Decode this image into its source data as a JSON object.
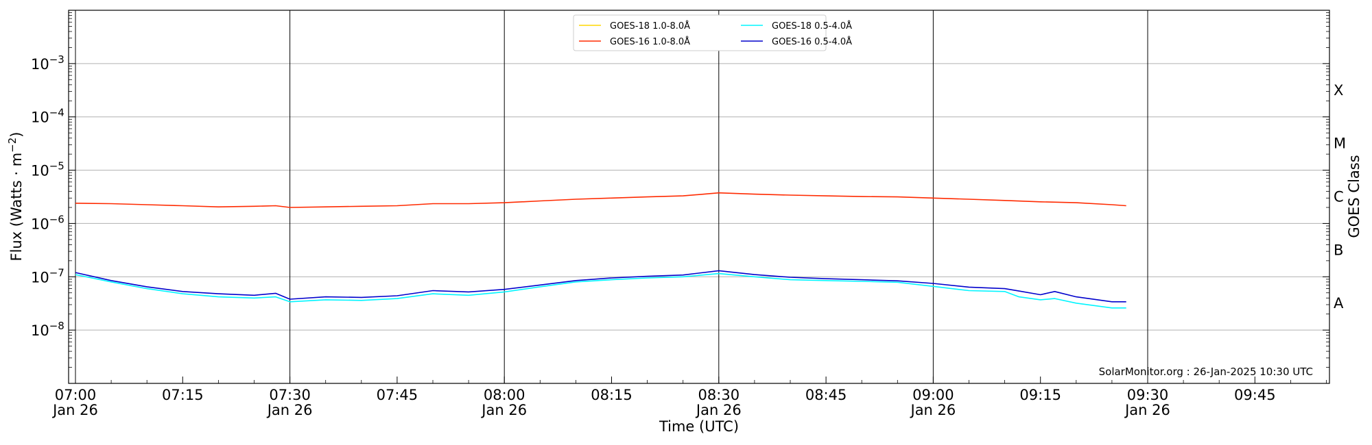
{
  "chart_data": {
    "type": "line",
    "title": "",
    "xlabel": "Time (UTC)",
    "ylabel": "Flux (Watts · m⁻²)",
    "ylabel_right": "GOES Class",
    "yscale": "log",
    "ylim": [
      1e-09,
      0.01
    ],
    "xlim": [
      "06:59",
      "09:55"
    ],
    "grid": "horizontal at decades",
    "credit": "SolarMonitor.org : 26-Jan-2025 10:30 UTC",
    "x_ticks": [
      {
        "time": "07:00",
        "label": "07:00",
        "sub": "Jan 26"
      },
      {
        "time": "07:15",
        "label": "07:15",
        "sub": ""
      },
      {
        "time": "07:30",
        "label": "07:30",
        "sub": "Jan 26"
      },
      {
        "time": "07:45",
        "label": "07:45",
        "sub": ""
      },
      {
        "time": "08:00",
        "label": "08:00",
        "sub": "Jan 26"
      },
      {
        "time": "08:15",
        "label": "08:15",
        "sub": ""
      },
      {
        "time": "08:30",
        "label": "08:30",
        "sub": "Jan 26"
      },
      {
        "time": "08:45",
        "label": "08:45",
        "sub": ""
      },
      {
        "time": "09:00",
        "label": "09:00",
        "sub": "Jan 26"
      },
      {
        "time": "09:15",
        "label": "09:15",
        "sub": ""
      },
      {
        "time": "09:30",
        "label": "09:30",
        "sub": "Jan 26"
      },
      {
        "time": "09:45",
        "label": "09:45",
        "sub": ""
      }
    ],
    "vertical_lines": [
      "07:00",
      "07:30",
      "08:00",
      "08:30",
      "09:00",
      "09:30"
    ],
    "y_ticks": [
      {
        "exp": -8,
        "label": "10",
        "sup": "−8"
      },
      {
        "exp": -7,
        "label": "10",
        "sup": "−7"
      },
      {
        "exp": -6,
        "label": "10",
        "sup": "−6"
      },
      {
        "exp": -5,
        "label": "10",
        "sup": "−5"
      },
      {
        "exp": -4,
        "label": "10",
        "sup": "−4"
      },
      {
        "exp": -3,
        "label": "10",
        "sup": "−3"
      }
    ],
    "goes_classes": [
      {
        "label": "A",
        "exp": -7.5
      },
      {
        "label": "B",
        "exp": -6.5
      },
      {
        "label": "C",
        "exp": -5.5
      },
      {
        "label": "M",
        "exp": -4.5
      },
      {
        "label": "X",
        "exp": -3.5
      }
    ],
    "legend": {
      "placement": "top-center",
      "entries": [
        "GOES-18 1.0-8.0Å",
        "GOES-16 1.0-8.0Å",
        "GOES-18 0.5-4.0Å",
        "GOES-16 0.5-4.0Å"
      ]
    },
    "series": [
      {
        "name": "GOES-18 1.0-8.0Å",
        "color": "#ffd700",
        "x": [],
        "y": []
      },
      {
        "name": "GOES-16 1.0-8.0Å",
        "color": "#ff2a00",
        "x": [
          "07:00",
          "07:05",
          "07:10",
          "07:15",
          "07:20",
          "07:25",
          "07:28",
          "07:30",
          "07:35",
          "07:40",
          "07:45",
          "07:50",
          "07:55",
          "08:00",
          "08:05",
          "08:10",
          "08:15",
          "08:20",
          "08:25",
          "08:30",
          "08:35",
          "08:40",
          "08:45",
          "08:50",
          "08:55",
          "09:00",
          "09:05",
          "09:10",
          "09:15",
          "09:20",
          "09:25",
          "09:27"
        ],
        "y": [
          2.4e-06,
          2.35e-06,
          2.25e-06,
          2.15e-06,
          2.05e-06,
          2.1e-06,
          2.15e-06,
          2e-06,
          2.05e-06,
          2.1e-06,
          2.15e-06,
          2.35e-06,
          2.35e-06,
          2.45e-06,
          2.65e-06,
          2.85e-06,
          3e-06,
          3.15e-06,
          3.3e-06,
          3.75e-06,
          3.55e-06,
          3.4e-06,
          3.3e-06,
          3.2e-06,
          3.15e-06,
          3e-06,
          2.85e-06,
          2.7e-06,
          2.55e-06,
          2.45e-06,
          2.25e-06,
          2.15e-06
        ]
      },
      {
        "name": "GOES-18 0.5-4.0Å",
        "color": "#00f5ff",
        "x": [
          "07:00",
          "07:05",
          "07:10",
          "07:15",
          "07:20",
          "07:25",
          "07:28",
          "07:30",
          "07:35",
          "07:40",
          "07:45",
          "07:50",
          "07:55",
          "08:00",
          "08:05",
          "08:10",
          "08:15",
          "08:20",
          "08:25",
          "08:30",
          "08:35",
          "08:40",
          "08:45",
          "08:50",
          "08:55",
          "09:00",
          "09:05",
          "09:10",
          "09:12",
          "09:15",
          "09:17",
          "09:20",
          "09:25",
          "09:27"
        ],
        "y": [
          1.1e-07,
          8e-08,
          6e-08,
          4.8e-08,
          4.2e-08,
          4e-08,
          4.2e-08,
          3.4e-08,
          3.7e-08,
          3.6e-08,
          3.9e-08,
          4.8e-08,
          4.5e-08,
          5.2e-08,
          6.5e-08,
          8e-08,
          8.8e-08,
          9.5e-08,
          1e-07,
          1.15e-07,
          1e-07,
          8.8e-08,
          8.5e-08,
          8.2e-08,
          7.9e-08,
          6.6e-08,
          5.5e-08,
          5.3e-08,
          4.2e-08,
          3.7e-08,
          3.9e-08,
          3.2e-08,
          2.6e-08,
          2.6e-08
        ]
      },
      {
        "name": "GOES-16 0.5-4.0Å",
        "color": "#0000cc",
        "x": [
          "07:00",
          "07:05",
          "07:10",
          "07:15",
          "07:20",
          "07:25",
          "07:28",
          "07:30",
          "07:35",
          "07:40",
          "07:45",
          "07:50",
          "07:55",
          "08:00",
          "08:05",
          "08:10",
          "08:15",
          "08:20",
          "08:25",
          "08:30",
          "08:35",
          "08:40",
          "08:45",
          "08:50",
          "08:55",
          "09:00",
          "09:05",
          "09:10",
          "09:12",
          "09:15",
          "09:17",
          "09:20",
          "09:25",
          "09:27"
        ],
        "y": [
          1.2e-07,
          8.5e-08,
          6.5e-08,
          5.3e-08,
          4.8e-08,
          4.5e-08,
          4.9e-08,
          3.8e-08,
          4.2e-08,
          4.1e-08,
          4.4e-08,
          5.5e-08,
          5.2e-08,
          5.8e-08,
          7e-08,
          8.5e-08,
          9.5e-08,
          1.02e-07,
          1.08e-07,
          1.3e-07,
          1.1e-07,
          9.8e-08,
          9.2e-08,
          8.8e-08,
          8.4e-08,
          7.5e-08,
          6.4e-08,
          6e-08,
          5.4e-08,
          4.6e-08,
          5.3e-08,
          4.2e-08,
          3.4e-08,
          3.4e-08
        ]
      }
    ]
  }
}
